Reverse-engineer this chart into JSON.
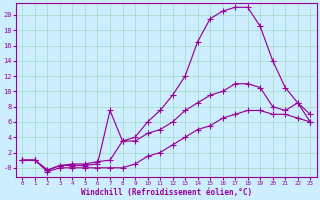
{
  "xlabel": "Windchill (Refroidissement éolien,°C)",
  "bg_color": "#cceeff",
  "grid_color": "#aaddcc",
  "line_color": "#990099",
  "xlim": [
    -0.5,
    23.5
  ],
  "ylim": [
    -1.2,
    21.5
  ],
  "xticks": [
    0,
    1,
    2,
    3,
    4,
    5,
    6,
    7,
    8,
    9,
    10,
    11,
    12,
    13,
    14,
    15,
    16,
    17,
    18,
    19,
    20,
    21,
    22,
    23
  ],
  "yticks": [
    0,
    2,
    4,
    6,
    8,
    10,
    12,
    14,
    16,
    18,
    20
  ],
  "line1_x": [
    0,
    1,
    2,
    3,
    4,
    5,
    6,
    7,
    8,
    9,
    10,
    11,
    12,
    13,
    14,
    15,
    16,
    17,
    18,
    19,
    20,
    21,
    22,
    23
  ],
  "line1_y": [
    1,
    1,
    -0.3,
    0.3,
    0.5,
    0.5,
    0.8,
    1.0,
    3.5,
    4.0,
    6.0,
    7.5,
    9.5,
    12.0,
    16.5,
    19.5,
    20.5,
    21.0,
    21.0,
    18.5,
    14.0,
    10.5,
    8.5,
    6.0
  ],
  "line2_x": [
    0,
    1,
    2,
    3,
    4,
    5,
    6,
    7,
    8,
    9,
    10,
    11,
    12,
    13,
    14,
    15,
    16,
    17,
    18,
    19,
    20,
    21,
    22,
    23
  ],
  "line2_y": [
    1,
    1,
    -0.3,
    0.3,
    0.3,
    0.3,
    0.5,
    7.5,
    3.5,
    3.5,
    4.5,
    5.0,
    6.0,
    7.5,
    8.5,
    9.5,
    10.0,
    11.0,
    11.0,
    10.5,
    8.0,
    7.5,
    8.5,
    7.0
  ],
  "line3_x": [
    0,
    1,
    2,
    3,
    4,
    5,
    6,
    7,
    8,
    9,
    10,
    11,
    12,
    13,
    14,
    15,
    16,
    17,
    18,
    19,
    20,
    21,
    22,
    23
  ],
  "line3_y": [
    1,
    1,
    -0.5,
    0.0,
    0.0,
    0.0,
    0.0,
    0.0,
    0.0,
    0.5,
    1.5,
    2.0,
    3.0,
    4.0,
    5.0,
    5.5,
    6.5,
    7.0,
    7.5,
    7.5,
    7.0,
    7.0,
    6.5,
    6.0
  ]
}
